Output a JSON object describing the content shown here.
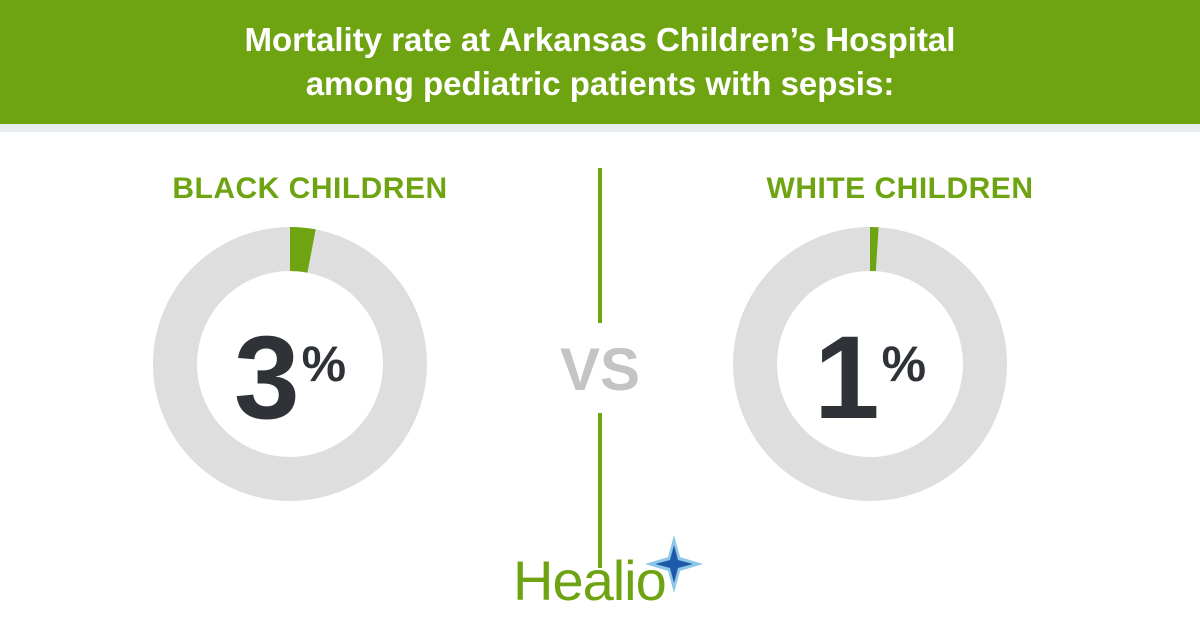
{
  "header": {
    "title_line1": "Mortality rate at Arkansas Children’s Hospital",
    "title_line2": "among pediatric patients with sepsis:"
  },
  "chart_data": {
    "type": "pie",
    "title": "Mortality rate at Arkansas Children’s Hospital among pediatric patients with sepsis:",
    "comparison_label": "VS",
    "unit": "%",
    "charts": [
      {
        "label": "BLACK CHILDREN",
        "value": 3,
        "display": "3"
      },
      {
        "label": "WHITE CHILDREN",
        "value": 1,
        "display": "1"
      }
    ]
  },
  "colors": {
    "accent": "#6ea311",
    "ring_track": "#dedede",
    "number": "#2f3338",
    "vs": "#c4c4c4",
    "star_blue": "#1f5aa8",
    "star_light": "#8fc7e8"
  },
  "logo": {
    "text": "Healio",
    "icon": "star-icon"
  }
}
